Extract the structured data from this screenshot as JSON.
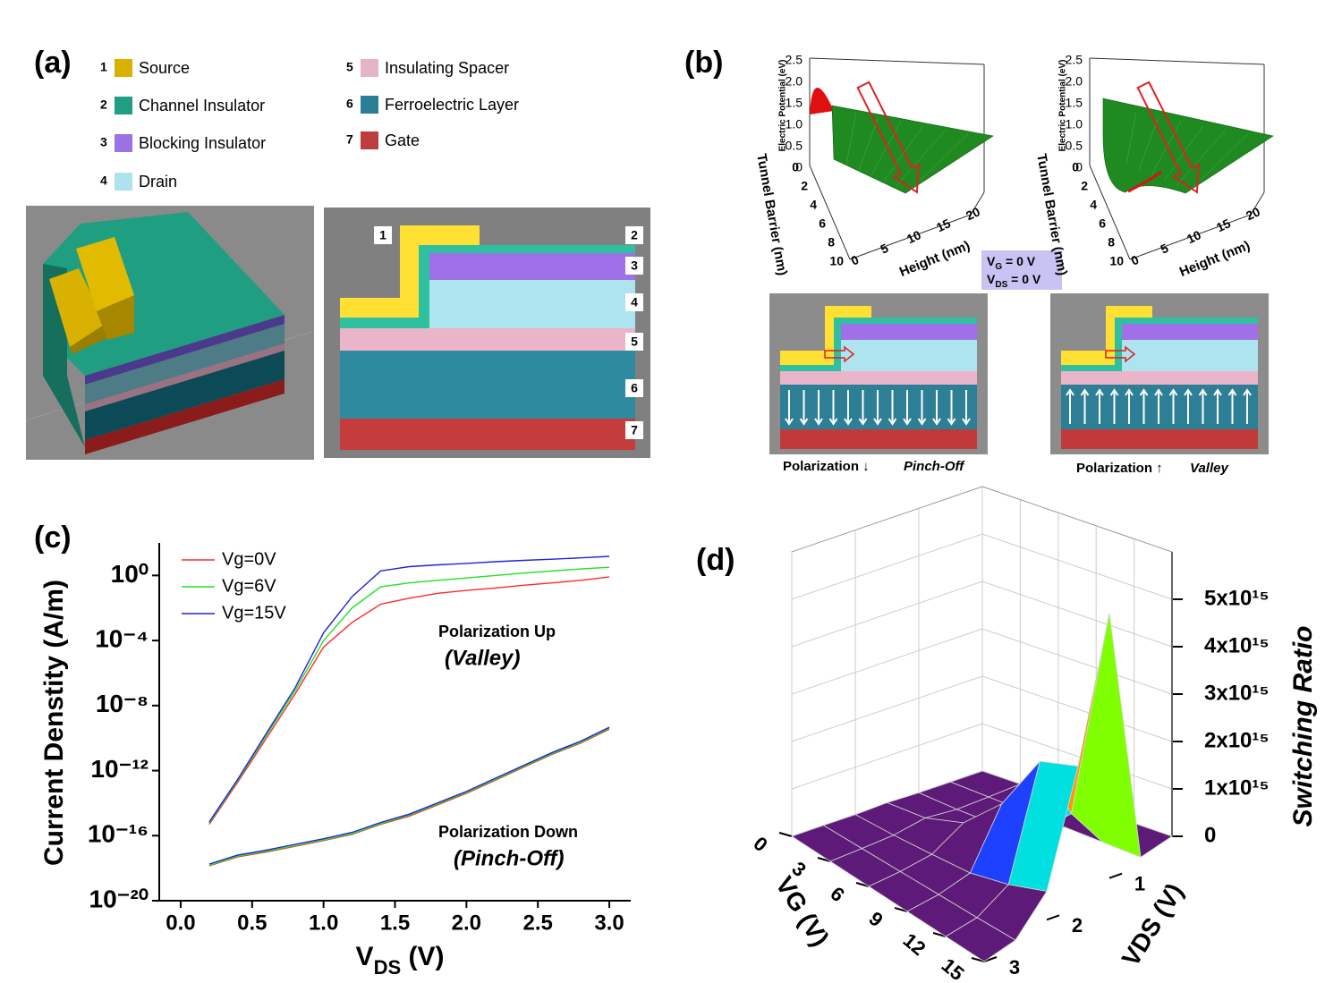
{
  "panels": {
    "a": {
      "label": "(a)",
      "legend": [
        {
          "number": "1",
          "name": "Source",
          "color": "#d9b100"
        },
        {
          "number": "2",
          "name": "Channel Insulator",
          "color": "#1f9e82"
        },
        {
          "number": "3",
          "name": "Blocking Insulator",
          "color": "#9b72e4"
        },
        {
          "number": "4",
          "name": "Drain",
          "color": "#ade3ee"
        },
        {
          "number": "5",
          "name": "Insulating Spacer",
          "color": "#e6b3c7"
        },
        {
          "number": "6",
          "name": "Ferroelectric Layer",
          "color": "#2b7f94"
        },
        {
          "number": "7",
          "name": "Gate",
          "color": "#bd3c3c"
        }
      ],
      "diagram_numbers": [
        "1",
        "2",
        "3",
        "4",
        "5",
        "6",
        "7"
      ]
    },
    "b": {
      "label": "(b)",
      "axes": {
        "z_title": "Electric Potential (eV)",
        "z_ticks": [
          "2.5",
          "2.0",
          "1.5",
          "1.0",
          "0.5",
          "0"
        ],
        "y_title": "Tunnel Barrier (nm)",
        "y_ticks": [
          "0",
          "2",
          "4",
          "6",
          "8",
          "10"
        ],
        "x_title": "Height (nm)",
        "x_ticks": [
          "0",
          "5",
          "10",
          "15",
          "20"
        ]
      },
      "bias": [
        {
          "symbol": "V",
          "subscript": "G",
          "text": "  = 0 V"
        },
        {
          "symbol": "V",
          "subscript": "DS",
          "text": " = 0 V"
        }
      ],
      "states": [
        {
          "polarization": "Polarization ↓",
          "mode": "Pinch-Off"
        },
        {
          "polarization": "Polarization ↑",
          "mode": "Valley"
        }
      ]
    },
    "c": {
      "label": "(c)"
    },
    "d": {
      "label": "(d)"
    }
  },
  "chart_data": [
    {
      "type": "line",
      "y_scale": "log",
      "x_label": {
        "symbol": "V",
        "subscript": "DS",
        "text": " (V)"
      },
      "y_label": "Current Denstity (A/m)",
      "x": [
        0.2,
        0.4,
        0.6,
        0.8,
        1.0,
        1.2,
        1.4,
        1.6,
        1.8,
        2.0,
        2.2,
        2.4,
        2.6,
        2.8,
        3.0
      ],
      "series": [
        {
          "name": "Vg=0V",
          "color": "#ff2a2a",
          "values_up": [
            5e-16,
            2e-13,
            1e-10,
            5e-08,
            4e-05,
            0.0013,
            0.017,
            0.04,
            0.08,
            0.12,
            0.17,
            0.25,
            0.35,
            0.5,
            0.8
          ],
          "values_down": [
            1.4e-18,
            5e-18,
            1e-17,
            2.2e-17,
            5e-17,
            1.2e-16,
            5e-16,
            1.6e-15,
            8e-15,
            4e-14,
            2.5e-13,
            1.6e-12,
            1e-11,
            5e-11,
            3.5e-10
          ]
        },
        {
          "name": "Vg=6V",
          "color": "#22e022",
          "values_up": [
            6e-16,
            2.5e-13,
            1.5e-10,
            8e-08,
            0.0001,
            0.01,
            0.2,
            0.35,
            0.5,
            0.7,
            1.0,
            1.4,
            1.9,
            2.5,
            3.2
          ],
          "values_down": [
            1.5e-18,
            5.5e-18,
            1.1e-17,
            2.4e-17,
            5.5e-17,
            1.3e-16,
            5.5e-16,
            1.8e-15,
            9e-15,
            4.5e-14,
            2.8e-13,
            1.8e-12,
            1.1e-11,
            5.5e-11,
            4e-10
          ]
        },
        {
          "name": "Vg=15V",
          "color": "#2222e0",
          "values_up": [
            7e-16,
            3e-13,
            2e-10,
            1.2e-07,
            0.0003,
            0.05,
            1.9,
            3.5,
            4.5,
            5.5,
            7,
            8.5,
            10,
            12,
            15
          ],
          "values_down": [
            1.8e-18,
            6.5e-18,
            1.3e-17,
            2.9e-17,
            6.5e-17,
            1.6e-16,
            6.5e-16,
            2.1e-15,
            1.05e-14,
            5.2e-14,
            3.3e-13,
            2.1e-12,
            1.3e-11,
            6.5e-11,
            4.6e-10
          ]
        }
      ],
      "annotations": [
        {
          "text": "Polarization Up",
          "detail": "(Valley)"
        },
        {
          "text": "Polarization Down",
          "detail": "(Pinch-Off)"
        }
      ],
      "xlim": [
        -0.15,
        3.15
      ],
      "xticks": [
        {
          "value": 0,
          "label": "0.0"
        },
        {
          "value": 0.5,
          "label": "0.5"
        },
        {
          "value": 1,
          "label": "1.0"
        },
        {
          "value": 1.5,
          "label": "1.5"
        },
        {
          "value": 2,
          "label": "2.0"
        },
        {
          "value": 2.5,
          "label": "2.5"
        },
        {
          "value": 3,
          "label": "3.0"
        }
      ],
      "ylim": [
        1e-20,
        100
      ],
      "yticks": [
        {
          "value": 1,
          "label": "10⁰"
        },
        {
          "value": 0.0001,
          "label": "10⁻⁴"
        },
        {
          "value": 1e-08,
          "label": "10⁻⁸"
        },
        {
          "value": 1e-12,
          "label": "10⁻¹²"
        },
        {
          "value": 1e-16,
          "label": "10⁻¹⁶"
        },
        {
          "value": 1e-20,
          "label": "10⁻²⁰"
        }
      ]
    },
    {
      "type": "surface",
      "x_label": "VDS (V)",
      "y_label": "VG (V)",
      "z_label": "Switching Ratio",
      "x": [
        0,
        0.5,
        1,
        1.5,
        2,
        2.5,
        3
      ],
      "y": [
        0,
        3,
        6,
        9,
        12,
        15
      ],
      "values": [
        [
          0,
          0,
          0,
          20000000000000.0,
          0,
          0,
          0
        ],
        [
          0,
          0,
          10000000000000.0,
          100000000000000.0,
          10000000000000.0,
          0,
          0
        ],
        [
          0,
          0,
          50000000000000.0,
          400000000000000.0,
          50000000000000.0,
          0,
          0
        ],
        [
          0,
          0,
          200000000000000.0,
          1200000000000000.0,
          100000000000000.0,
          0,
          0
        ],
        [
          0,
          0,
          1000000000000000.0,
          2500000000000000.0,
          300000000000000.0,
          0,
          0
        ],
        [
          0,
          0,
          5600000000000000.0,
          2800000000000000.0,
          600000000000000.0,
          10000000000000.0,
          0
        ]
      ],
      "colorscale": [
        "#5e1a78",
        "#1e40ff",
        "#00e0e0",
        "#80ff00",
        "#ffee00",
        "#ff9900",
        "#ff1a00",
        "#8b0000"
      ],
      "xlim": [
        0,
        3
      ],
      "xticks": [
        1,
        2,
        3
      ],
      "ylim": [
        0,
        15
      ],
      "yticks": [
        0,
        3,
        6,
        9,
        12,
        15
      ],
      "zlim": [
        0,
        6000000000000000.0
      ],
      "zticks": [
        0,
        {
          "value": 1000000000000000.0,
          "label": "1x10¹⁵"
        },
        {
          "value": 2000000000000000.0,
          "label": "2x10¹⁵"
        },
        {
          "value": 3000000000000000.0,
          "label": "3x10¹⁵"
        },
        {
          "value": 4000000000000000.0,
          "label": "4x10¹⁵"
        },
        {
          "value": 5000000000000000.0,
          "label": "5x10¹⁵"
        }
      ]
    }
  ]
}
